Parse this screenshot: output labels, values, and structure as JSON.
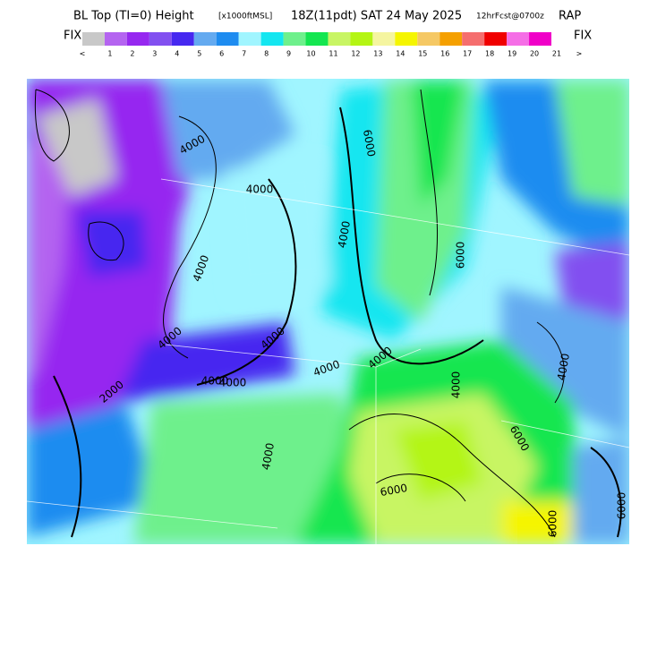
{
  "header": {
    "title_main": "BL Top (TI=0) Height",
    "title_units": "[x1000ftMSL]",
    "title_time": "18Z(11pdt) SAT 24 May 2025",
    "title_fcst": "12hrFcst@0700z",
    "title_model": "RAP"
  },
  "colorbar": {
    "fix_label": "FIX",
    "colors": [
      "#c8c8c8",
      "#b464f0",
      "#9628f0",
      "#8250f0",
      "#4628f0",
      "#64aaf0",
      "#1e8cf0",
      "#a0f5ff",
      "#14e6f0",
      "#6ef08c",
      "#14e650",
      "#c8f564",
      "#b4f514",
      "#f5f5a0",
      "#f5f500",
      "#f5c864",
      "#f5a000",
      "#f56e6e",
      "#f00000",
      "#f56ee6",
      "#f000c8"
    ],
    "labels": [
      "<",
      "1",
      "2",
      "3",
      "4",
      "5",
      "6",
      "7",
      "8",
      "9",
      "10",
      "11",
      "12",
      "13",
      "14",
      "15",
      "16",
      "17",
      "18",
      "19",
      "20",
      "21",
      ">"
    ]
  },
  "contour_labels": [
    "4000",
    "4000",
    "4000",
    "6000",
    "4000",
    "4000",
    "4000",
    "6000",
    "4000",
    "4000",
    "4000",
    "6000",
    "6000",
    "4000",
    "6000",
    "6000",
    "4000",
    "2000",
    "4000",
    "4000"
  ]
}
